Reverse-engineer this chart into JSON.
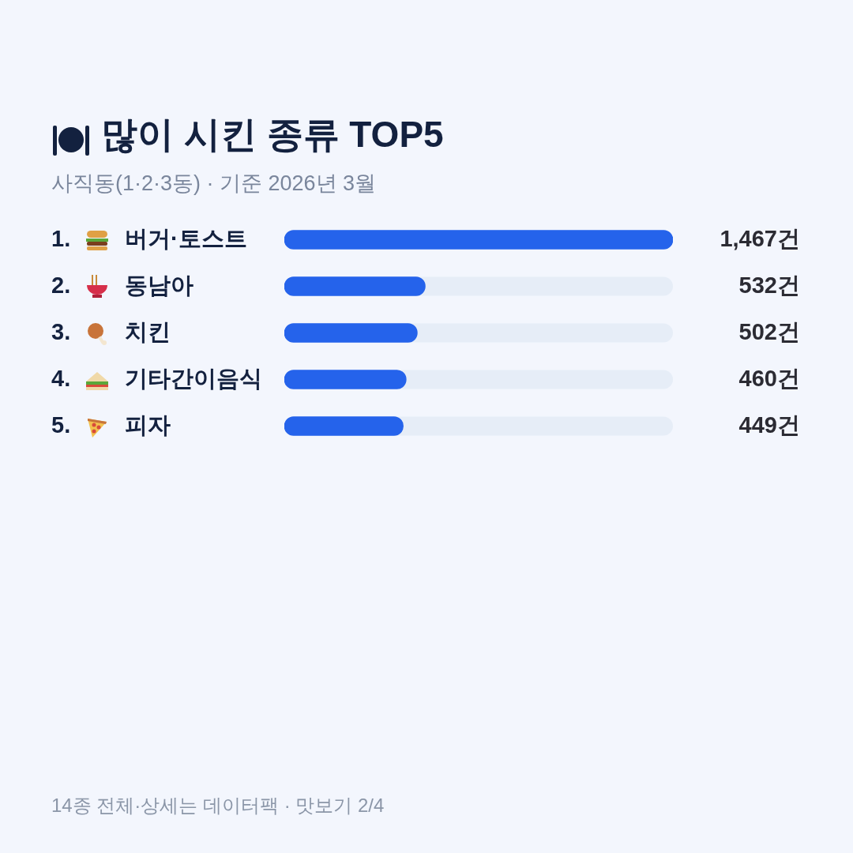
{
  "chart_data": {
    "type": "bar",
    "orientation": "horizontal",
    "title": "많이 시킨 종류 TOP5",
    "subtitle": "사직동(1·2·3동) · 기준 2026년 3월",
    "categories": [
      "1. 버거·토스트",
      "2. 동남아",
      "3. 치킨",
      "4. 기타간이음식",
      "5. 피자"
    ],
    "values": [
      1467,
      532,
      502,
      460,
      449
    ],
    "value_labels": [
      "1,467건",
      "532건",
      "502건",
      "460건",
      "449건"
    ],
    "color": "#2563eb",
    "xlim": [
      0,
      1467
    ],
    "tick_labels": "y",
    "legend": false,
    "annotations": [
      "14종 전체·상세는 데이터팩 · 맛보기 2/4"
    ]
  }
}
